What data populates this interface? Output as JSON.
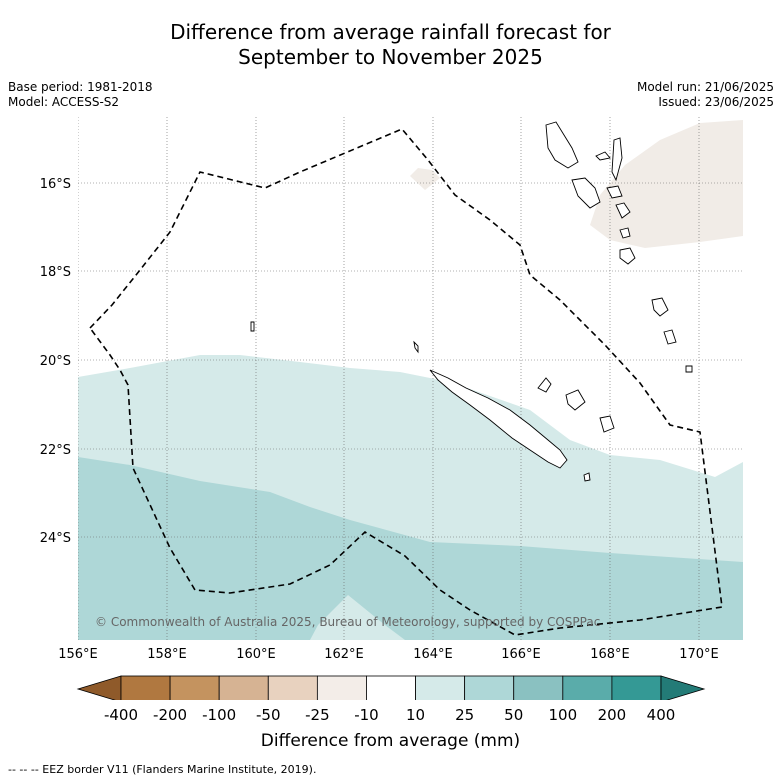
{
  "title_line1": "Difference from average rainfall forecast for",
  "title_line2": "September to November 2025",
  "meta_left": [
    "Base period: 1981-2018",
    "Model: ACCESS-S2"
  ],
  "meta_right": [
    "Model run: 21/06/2025",
    "Issued: 23/06/2025"
  ],
  "copyright": "© Commonwealth of Australia 2025, Bureau of Meteorology, supported by COSPPac",
  "lat_labels": [
    "16°S",
    "18°S",
    "20°S",
    "22°S",
    "24°S"
  ],
  "lon_labels": [
    "156°E",
    "158°E",
    "160°E",
    "162°E",
    "164°E",
    "166°E",
    "168°E",
    "170°E"
  ],
  "colorbar": {
    "title": "Difference from average (mm)",
    "labels": [
      "-400",
      "-200",
      "-100",
      "-50",
      "-25",
      "-10",
      "10",
      "25",
      "50",
      "100",
      "200",
      "400"
    ],
    "colors": [
      "#8f5a2a",
      "#b07840",
      "#c4935f",
      "#d6b393",
      "#e8d2bf",
      "#f3ede8",
      "#ffffff",
      "#d5eae9",
      "#aed7d7",
      "#8ac1c1",
      "#5aacaa",
      "#349995",
      "#237b77"
    ]
  },
  "map_colors": {
    "dry_light": "#f1ece7",
    "wet_10_25": "#d5eae9",
    "wet_25_50": "#aed7d7"
  },
  "footer": "--  --  -- EEZ border V11 (Flanders Marine Institute, 2019)."
}
